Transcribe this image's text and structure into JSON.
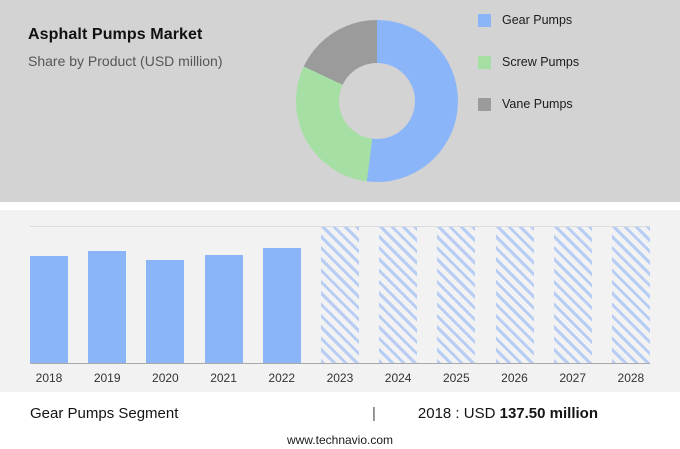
{
  "header": {
    "title": "Asphalt Pumps Market",
    "subtitle": "Share by Product (USD million)"
  },
  "legend": {
    "items": [
      {
        "label": "Gear Pumps",
        "color": "#8ab5f8"
      },
      {
        "label": "Screw Pumps",
        "color": "#a5dfa3"
      },
      {
        "label": "Vane Pumps",
        "color": "#9b9b9b"
      }
    ]
  },
  "footer": {
    "segment_label": "Gear Pumps Segment",
    "separator": "|",
    "stat_prefix": "2018 : USD ",
    "stat_value": "137.50 million",
    "website": "www.technavio.com"
  },
  "chart_data": [
    {
      "type": "pie",
      "donut": true,
      "title": "Share by Product (USD million)",
      "categories": [
        "Gear Pumps",
        "Screw Pumps",
        "Vane Pumps"
      ],
      "values": [
        52,
        30,
        18
      ],
      "unit": "percent (estimated from arc angles)",
      "colors": [
        "#8ab5f8",
        "#a5dfa3",
        "#9b9b9b"
      ],
      "legend_position": "right"
    },
    {
      "type": "bar",
      "title": "Gear Pumps Segment (USD million)",
      "categories": [
        "2018",
        "2019",
        "2020",
        "2021",
        "2022",
        "2023",
        "2024",
        "2025",
        "2026",
        "2027",
        "2028"
      ],
      "values": [
        137.5,
        143.5,
        133.0,
        139.5,
        147.5,
        null,
        null,
        null,
        null,
        null,
        null
      ],
      "forecast": [
        false,
        false,
        false,
        false,
        false,
        true,
        true,
        true,
        true,
        true,
        true
      ],
      "known_point": {
        "year": "2018",
        "value_label": "USD 137.50 million"
      },
      "xlabel": "",
      "ylabel": "",
      "ylim": [
        0,
        175
      ],
      "grid": "top gridline only",
      "bar_color": "#8ab5f8",
      "forecast_style": "diagonal-hatch"
    }
  ]
}
